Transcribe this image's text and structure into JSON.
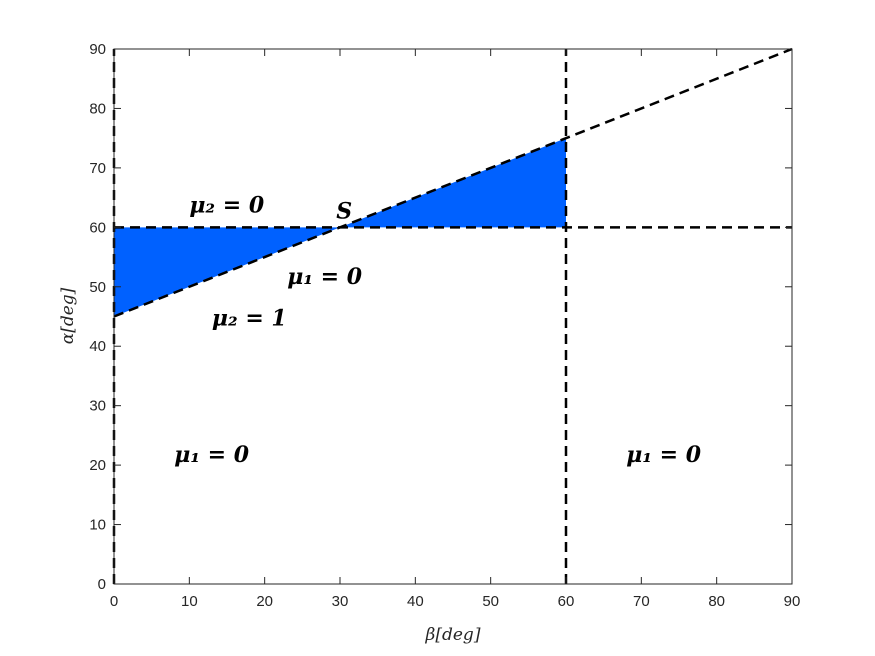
{
  "chart_data": {
    "type": "area",
    "title": "",
    "xlabel": "β[deg]",
    "ylabel": "α[deg]",
    "xlim": [
      0,
      90
    ],
    "ylim": [
      0,
      90
    ],
    "xticks": [
      "0",
      "10",
      "20",
      "30",
      "40",
      "50",
      "60",
      "70",
      "80",
      "90"
    ],
    "yticks": [
      "0",
      "10",
      "20",
      "30",
      "40",
      "50",
      "60",
      "70",
      "80",
      "90"
    ],
    "grid": false,
    "fill_color": "#0061FF",
    "line_color": "#000000",
    "lines": [
      {
        "x": [
          0,
          90
        ],
        "y": [
          45,
          90
        ]
      },
      {
        "x": [
          0,
          90
        ],
        "y": [
          60,
          60
        ]
      },
      {
        "x": [
          0,
          0
        ],
        "y": [
          0,
          90
        ]
      },
      {
        "x": [
          60,
          60
        ],
        "y": [
          0,
          90
        ]
      }
    ],
    "regions": [
      {
        "x": [
          0,
          30,
          0
        ],
        "y": [
          45,
          60,
          60
        ]
      },
      {
        "x": [
          30,
          60,
          60
        ],
        "y": [
          60,
          75,
          60
        ]
      }
    ],
    "annotations": [
      {
        "id": "mu2-zero",
        "text": "μ₂ = 0",
        "x": 10,
        "y": 62.5
      },
      {
        "id": "point-s",
        "text": "S",
        "x": 29.5,
        "y": 61.5
      },
      {
        "id": "mu1-zero-mid",
        "text": "μ₁ = 0",
        "x": 23,
        "y": 50.5
      },
      {
        "id": "mu2-one",
        "text": "μ₂ = 1",
        "x": 13,
        "y": 43.5
      },
      {
        "id": "mu1-zero-left",
        "text": "μ₁ = 0",
        "x": 8,
        "y": 20.5
      },
      {
        "id": "mu1-zero-right",
        "text": "μ₁ = 0",
        "x": 68,
        "y": 20.5
      }
    ]
  }
}
